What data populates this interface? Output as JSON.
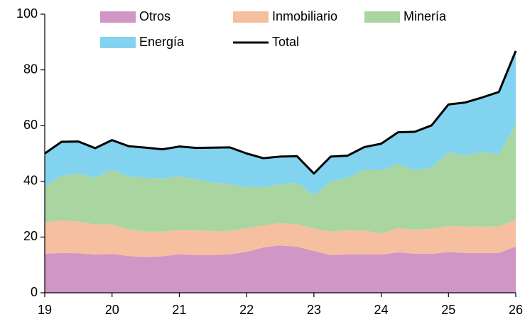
{
  "chart_data": {
    "type": "area",
    "stacked": true,
    "x": [
      19,
      19.25,
      19.5,
      19.75,
      20,
      20.25,
      20.5,
      20.75,
      21,
      21.25,
      21.5,
      21.75,
      22,
      22.25,
      22.5,
      22.75,
      23,
      23.25,
      23.5,
      23.75,
      24,
      24.25,
      24.5,
      24.75,
      25,
      25.25,
      25.5,
      25.75,
      26
    ],
    "series": [
      {
        "name": "Otros",
        "color": "#cf96c6",
        "values": [
          14,
          14.3,
          14.2,
          13.7,
          13.9,
          13.2,
          12.8,
          13.1,
          13.8,
          13.5,
          13.5,
          13.8,
          14.7,
          16.3,
          17,
          16.5,
          15,
          13.5,
          13.8,
          13.8,
          13.7,
          14.5,
          14,
          14,
          14.6,
          14.3,
          14.3,
          14.3,
          16.6
        ]
      },
      {
        "name": "Inmobiliario",
        "color": "#f5bfa0",
        "values": [
          11.2,
          11.7,
          11.4,
          10.8,
          10.6,
          9.6,
          9.1,
          8.8,
          8.8,
          9,
          8.6,
          8.4,
          8.5,
          7.9,
          8,
          8.1,
          8.1,
          8.4,
          8.7,
          8.5,
          7.6,
          8.7,
          8.6,
          9,
          9.4,
          9.5,
          9.4,
          9.5,
          9.7
        ]
      },
      {
        "name": "Minería",
        "color": "#a8d5a0",
        "values": [
          12.8,
          16,
          17.2,
          16.7,
          19.8,
          18.9,
          19.4,
          19.1,
          19.2,
          18.2,
          17.4,
          16.8,
          14.7,
          13.7,
          14,
          14.8,
          11.9,
          18.1,
          18.7,
          21.9,
          22.7,
          23.1,
          21.4,
          22,
          26.4,
          25.5,
          26.8,
          25.9,
          34.2
        ]
      },
      {
        "name": "Energía",
        "color": "#82d3ef",
        "values": [
          12,
          12.2,
          11.5,
          10.7,
          10.5,
          10.9,
          10.8,
          10.5,
          10.7,
          11.3,
          12.6,
          13.2,
          12.1,
          10.4,
          9.9,
          9.6,
          7.8,
          8.9,
          8,
          8.1,
          9.5,
          11.3,
          13.8,
          15.1,
          17.2,
          19,
          19.6,
          22.4,
          26.3
        ]
      },
      {
        "name": "Total",
        "color": "#000000",
        "type": "line",
        "values": [
          50,
          54.2,
          54.3,
          51.9,
          54.8,
          52.6,
          52.1,
          51.5,
          52.5,
          52,
          52.1,
          52.2,
          50,
          48.3,
          48.9,
          49,
          42.8,
          48.9,
          49.2,
          52.3,
          53.5,
          57.6,
          57.8,
          60.1,
          67.6,
          68.3,
          70.1,
          72.1,
          86.8
        ]
      }
    ],
    "xlim": [
      19,
      26
    ],
    "xticks": [
      19,
      20,
      21,
      22,
      23,
      24,
      25,
      26
    ],
    "ylim": [
      0,
      100
    ],
    "yticks": [
      0,
      20,
      40,
      60,
      80,
      100
    ],
    "legend": "top"
  }
}
